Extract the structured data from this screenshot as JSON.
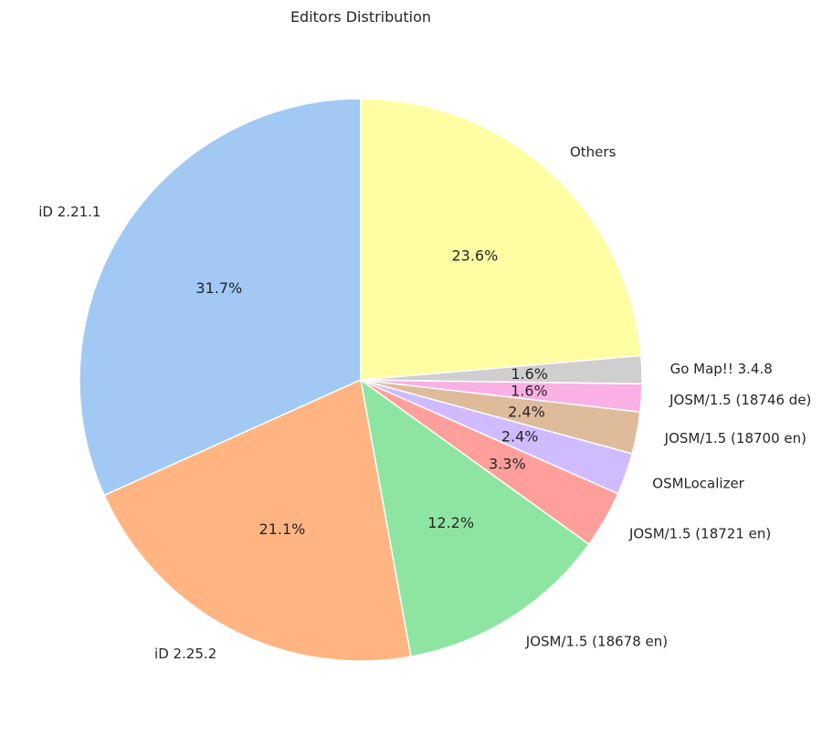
{
  "chart_data": {
    "type": "pie",
    "title": "Editors Distribution",
    "start_angle_deg": 90,
    "direction": "counterclockwise",
    "slices": [
      {
        "label": "iD 2.21.1",
        "value": 31.7,
        "pct_label": "31.7%",
        "color": "#a1c9f4"
      },
      {
        "label": "iD 2.25.2",
        "value": 21.1,
        "pct_label": "21.1%",
        "color": "#ffb482"
      },
      {
        "label": "JOSM/1.5 (18678 en)",
        "value": 12.2,
        "pct_label": "12.2%",
        "color": "#8de5a1"
      },
      {
        "label": "JOSM/1.5 (18721 en)",
        "value": 3.3,
        "pct_label": "3.3%",
        "color": "#ff9f9b"
      },
      {
        "label": "OSMLocalizer",
        "value": 2.4,
        "pct_label": "2.4%",
        "color": "#d0bbff"
      },
      {
        "label": "JOSM/1.5 (18700 en)",
        "value": 2.4,
        "pct_label": "2.4%",
        "color": "#debb9b"
      },
      {
        "label": "JOSM/1.5 (18746 de)",
        "value": 1.6,
        "pct_label": "1.6%",
        "color": "#fab0e4"
      },
      {
        "label": "Go Map!! 3.4.8",
        "value": 1.6,
        "pct_label": "1.6%",
        "color": "#cfcfcf"
      },
      {
        "label": "Others",
        "value": 23.6,
        "pct_label": "23.6%",
        "color": "#fffea3"
      }
    ]
  }
}
